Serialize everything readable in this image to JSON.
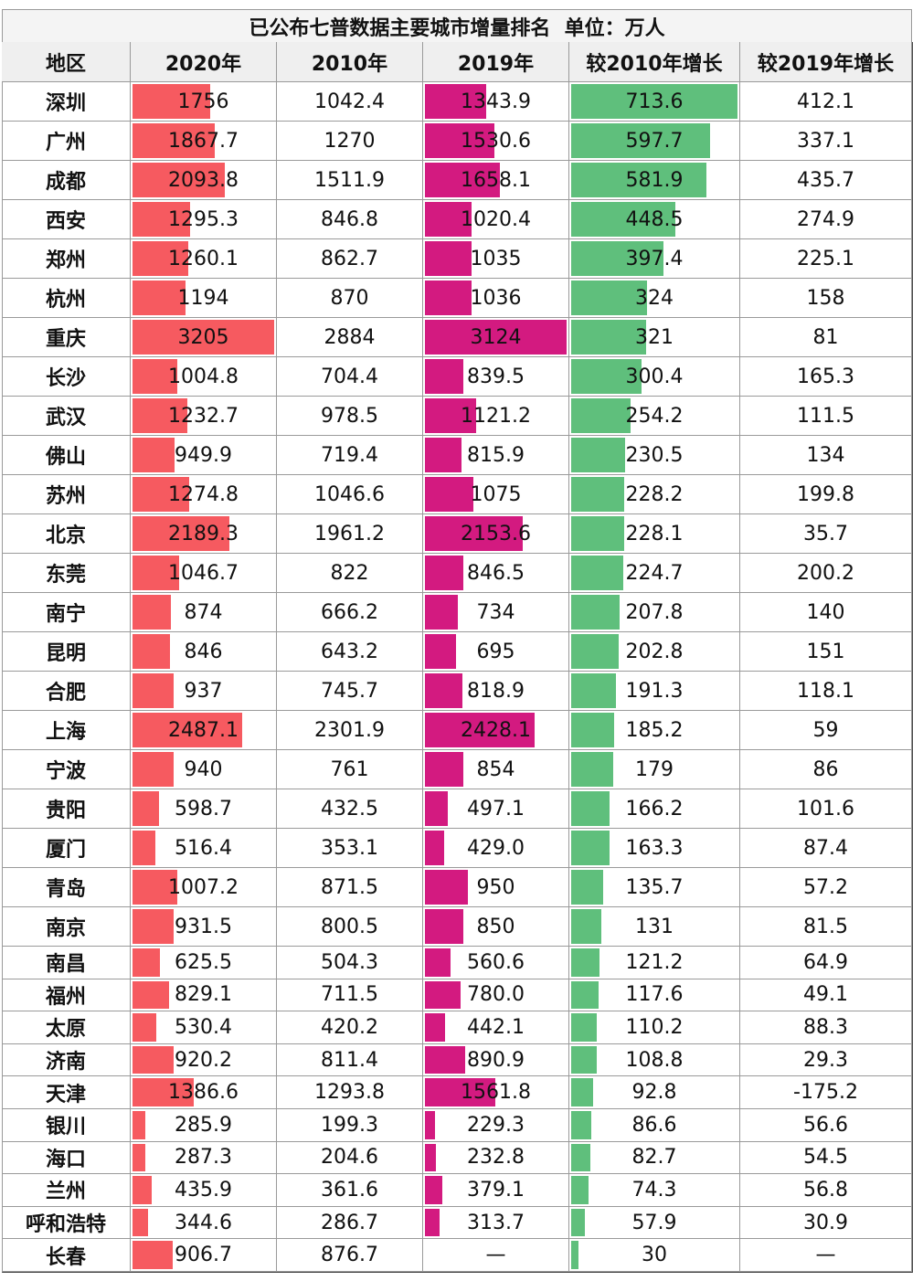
{
  "title": "已公布七普数据主要城市增量排名  单位：万人",
  "table": {
    "header": [
      "地区",
      "2020年",
      "2010年",
      "2019年",
      "较2010年增长",
      "较2019年增长"
    ],
    "rows": [
      [
        "深圳",
        "1756",
        "1042.4",
        "1343.9",
        "713.6",
        "412.1"
      ],
      [
        "广州",
        "1867.7",
        "1270",
        "1530.6",
        "597.7",
        "337.1"
      ],
      [
        "成都",
        "2093.8",
        "1511.9",
        "1658.1",
        "581.9",
        "435.7"
      ],
      [
        "西安",
        "1295.3",
        "846.8",
        "1020.4",
        "448.5",
        "274.9"
      ],
      [
        "郑州",
        "1260.1",
        "862.7",
        "1035",
        "397.4",
        "225.1"
      ],
      [
        "杭州",
        "1194",
        "870",
        "1036",
        "324",
        "158"
      ],
      [
        "重庆",
        "3205",
        "2884",
        "3124",
        "321",
        "81"
      ],
      [
        "长沙",
        "1004.8",
        "704.4",
        "839.5",
        "300.4",
        "165.3"
      ],
      [
        "武汉",
        "1232.7",
        "978.5",
        "1121.2",
        "254.2",
        "111.5"
      ],
      [
        "佛山",
        "949.9",
        "719.4",
        "815.9",
        "230.5",
        "134"
      ],
      [
        "苏州",
        "1274.8",
        "1046.6",
        "1075",
        "228.2",
        "199.8"
      ],
      [
        "北京",
        "2189.3",
        "1961.2",
        "2153.6",
        "228.1",
        "35.7"
      ],
      [
        "东莞",
        "1046.7",
        "822",
        "846.5",
        "224.7",
        "200.2"
      ],
      [
        "南宁",
        "874",
        "666.2",
        "734",
        "207.8",
        "140"
      ],
      [
        "昆明",
        "846",
        "643.2",
        "695",
        "202.8",
        "151"
      ],
      [
        "合肥",
        "937",
        "745.7",
        "818.9",
        "191.3",
        "118.1"
      ],
      [
        "上海",
        "2487.1",
        "2301.9",
        "2428.1",
        "185.2",
        "59"
      ],
      [
        "宁波",
        "940",
        "761",
        "854",
        "179",
        "86"
      ],
      [
        "贵阳",
        "598.7",
        "432.5",
        "497.1",
        "166.2",
        "101.6"
      ],
      [
        "厦门",
        "516.4",
        "353.1",
        "429.0",
        "163.3",
        "87.4"
      ],
      [
        "青岛",
        "1007.2",
        "871.5",
        "950",
        "135.7",
        "57.2"
      ],
      [
        "南京",
        "931.5",
        "800.5",
        "850",
        "131",
        "81.5"
      ],
      [
        "南昌",
        "625.5",
        "504.3",
        "560.6",
        "121.2",
        "64.9"
      ],
      [
        "福州",
        "829.1",
        "711.5",
        "780.0",
        "117.6",
        "49.1"
      ],
      [
        "太原",
        "530.4",
        "420.2",
        "442.1",
        "110.2",
        "88.3"
      ],
      [
        "济南",
        "920.2",
        "811.4",
        "890.9",
        "108.8",
        "29.3"
      ],
      [
        "天津",
        "1386.6",
        "1293.8",
        "1561.8",
        "92.8",
        "-175.2"
      ],
      [
        "银川",
        "285.9",
        "199.3",
        "229.3",
        "86.6",
        "56.6"
      ],
      [
        "海口",
        "287.3",
        "204.6",
        "232.8",
        "82.7",
        "54.5"
      ],
      [
        "兰州",
        "435.9",
        "361.6",
        "379.1",
        "74.3",
        "56.8"
      ],
      [
        "呼和浩特",
        "344.6",
        "286.7",
        "313.7",
        "57.9",
        "30.9"
      ],
      [
        "长春",
        "906.7",
        "876.7",
        "—",
        "30",
        "—"
      ]
    ]
  }
}
